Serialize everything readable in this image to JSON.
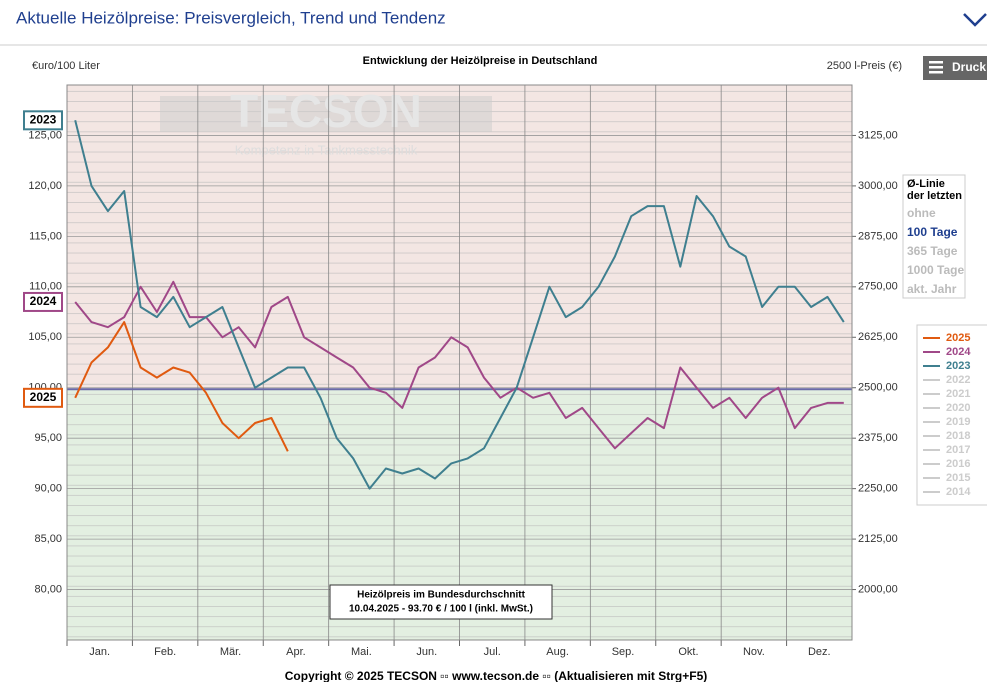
{
  "header": {
    "title": "Aktuelle Heizölpreise:  Preisvergleich, Trend und Tendenz"
  },
  "print_button": "Druck",
  "chart_data": {
    "type": "line",
    "title": "Entwicklung der Heizölpreise in Deutschland",
    "y_label": "€uro/100 Liter",
    "y2_label": "2500 l-Preis (€)",
    "watermark": "TECSON",
    "watermark_sub": "Kompetenz in Tankmesstechnik",
    "x_labels": [
      "Jan.",
      "Feb.",
      "Mär.",
      "Apr.",
      "Mai.",
      "Jun.",
      "Jul.",
      "Aug.",
      "Sep.",
      "Okt.",
      "Nov.",
      "Dez."
    ],
    "ylim": [
      75,
      130
    ],
    "yticks": [
      {
        "value": 80,
        "label": "80,00"
      },
      {
        "value": 85,
        "label": "85,00"
      },
      {
        "value": 90,
        "label": "90,00"
      },
      {
        "value": 95,
        "label": "95,00"
      },
      {
        "value": 100,
        "label": "100,00"
      },
      {
        "value": 105,
        "label": "105,00"
      },
      {
        "value": 110,
        "label": "110,00"
      },
      {
        "value": 115,
        "label": "115,00"
      },
      {
        "value": 120,
        "label": "120,00"
      },
      {
        "value": 125,
        "label": "125,00"
      }
    ],
    "y2lim": [
      1875,
      3250
    ],
    "y2ticks": [
      {
        "value": 2000,
        "label": "2000,00"
      },
      {
        "value": 2125,
        "label": "2125,00"
      },
      {
        "value": 2250,
        "label": "2250,00"
      },
      {
        "value": 2375,
        "label": "2375,00"
      },
      {
        "value": 2500,
        "label": "2500,00"
      },
      {
        "value": 2625,
        "label": "2625,00"
      },
      {
        "value": 2750,
        "label": "2750,00"
      },
      {
        "value": 2875,
        "label": "2875,00"
      },
      {
        "value": 3000,
        "label": "3000,00"
      },
      {
        "value": 3125,
        "label": "3125,00"
      }
    ],
    "reference_line": 99.85,
    "grid": true,
    "series": [
      {
        "name": "2025",
        "color": "#e05a10",
        "values": [
          99,
          102.5,
          104,
          106.5,
          102,
          101,
          102,
          101.5,
          99.5,
          96.5,
          95,
          96.5,
          97,
          93.7,
          null,
          null,
          null,
          null,
          null,
          null,
          null,
          null,
          null,
          null,
          null,
          null,
          null,
          null,
          null,
          null,
          null,
          null,
          null,
          null,
          null,
          null,
          null,
          null,
          null,
          null,
          null,
          null,
          null,
          null,
          null,
          null,
          null,
          null
        ]
      },
      {
        "name": "2024",
        "color": "#a04888",
        "values": [
          108.5,
          106.5,
          106,
          107,
          110,
          107.5,
          110.5,
          107,
          107,
          105,
          106,
          104,
          108,
          109,
          105,
          104,
          103,
          102,
          100,
          99.5,
          98,
          102,
          103,
          105,
          104,
          101,
          99,
          100,
          99,
          99.5,
          97,
          98,
          96,
          94,
          95.5,
          97,
          96,
          102,
          100,
          98,
          99,
          97,
          99,
          100,
          96,
          98,
          98.5,
          98.5
        ]
      },
      {
        "name": "2023",
        "color": "#3f7f8f",
        "values": [
          126.5,
          120,
          117.5,
          119.5,
          108,
          107,
          109,
          106,
          107,
          108,
          104,
          100,
          101,
          102,
          102,
          99,
          95,
          93,
          90,
          92,
          91.5,
          92,
          91,
          92.5,
          93,
          94,
          97,
          100,
          105,
          110,
          107,
          108,
          110,
          113,
          117,
          118,
          118,
          112,
          119,
          117,
          114,
          113,
          108,
          110,
          110,
          108,
          109,
          106.5
        ]
      }
    ],
    "legend_inactive": [
      "2022",
      "2021",
      "2020",
      "2019",
      "2018",
      "2017",
      "2016",
      "2015",
      "2014"
    ],
    "average_panel": {
      "title": [
        "Ø-Linie",
        "der letzten"
      ],
      "options": [
        "ohne",
        "100 Tage",
        "365 Tage",
        "1000 Tage",
        "akt. Jahr"
      ],
      "selected": 1
    },
    "annotation": {
      "title": "Heizölpreis im Bundesdurchschnitt",
      "text": "10.04.2025 - 93.70 € / 100 l (inkl. MwSt.)"
    }
  },
  "footer": "Copyright © 2025 TECSON ▫▫ www.tecson.de ▫▫ (Aktualisieren mit Strg+F5)"
}
